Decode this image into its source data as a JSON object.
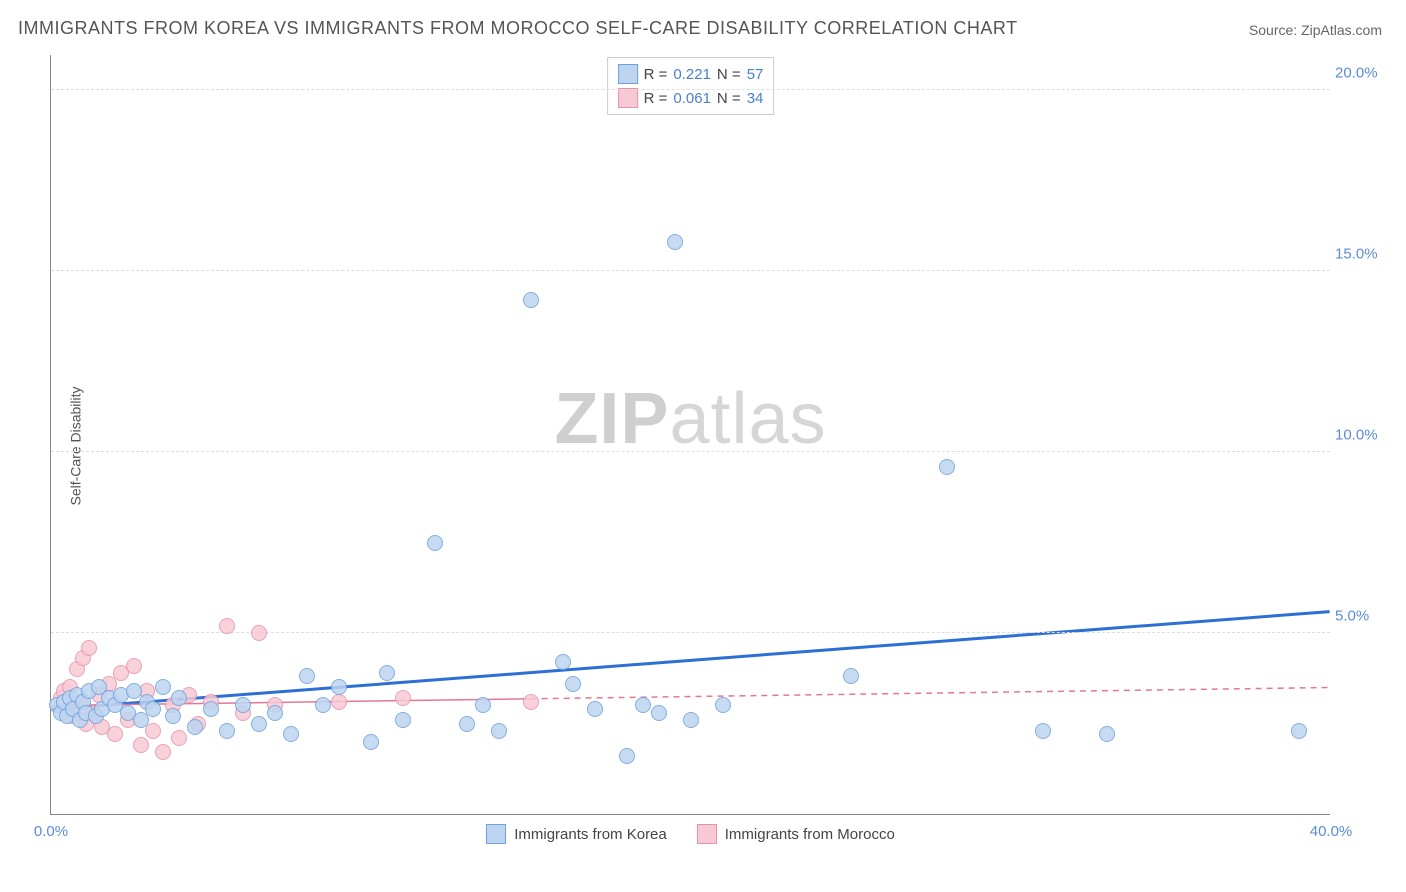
{
  "title": "IMMIGRANTS FROM KOREA VS IMMIGRANTS FROM MOROCCO SELF-CARE DISABILITY CORRELATION CHART",
  "source": "Source: ZipAtlas.com",
  "ylabel": "Self-Care Disability",
  "watermark_a": "ZIP",
  "watermark_b": "atlas",
  "chart": {
    "type": "scatter",
    "background_color": "#ffffff",
    "grid_color": "#dddddd",
    "axis_color": "#888888",
    "xlim": [
      0,
      40
    ],
    "ylim": [
      0,
      21
    ],
    "xticks": [
      {
        "v": 0,
        "label": "0.0%"
      },
      {
        "v": 40,
        "label": "40.0%"
      }
    ],
    "yticks": [
      {
        "v": 5,
        "label": "5.0%"
      },
      {
        "v": 10,
        "label": "10.0%"
      },
      {
        "v": 15,
        "label": "15.0%"
      },
      {
        "v": 20,
        "label": "20.0%"
      }
    ],
    "marker_radius": 8,
    "series": [
      {
        "id": "korea",
        "label": "Immigrants from Korea",
        "fill": "#bdd5f0",
        "stroke": "#6fa0de",
        "trend_color": "#2d6fd4",
        "trend_width": 3,
        "trend_dash": "none",
        "trend": {
          "x1": 0,
          "y1": 2.9,
          "x2": 40,
          "y2": 5.6
        },
        "R_label": "R = ",
        "R": "0.221",
        "N_label": "  N = ",
        "N": "57",
        "points": [
          [
            0.2,
            3.0
          ],
          [
            0.3,
            2.8
          ],
          [
            0.4,
            3.1
          ],
          [
            0.5,
            2.7
          ],
          [
            0.6,
            3.2
          ],
          [
            0.7,
            2.9
          ],
          [
            0.8,
            3.3
          ],
          [
            0.9,
            2.6
          ],
          [
            1.0,
            3.1
          ],
          [
            1.1,
            2.8
          ],
          [
            1.2,
            3.4
          ],
          [
            1.4,
            2.7
          ],
          [
            1.5,
            3.5
          ],
          [
            1.6,
            2.9
          ],
          [
            1.8,
            3.2
          ],
          [
            2.0,
            3.0
          ],
          [
            2.2,
            3.3
          ],
          [
            2.4,
            2.8
          ],
          [
            2.6,
            3.4
          ],
          [
            2.8,
            2.6
          ],
          [
            3.0,
            3.1
          ],
          [
            3.2,
            2.9
          ],
          [
            3.5,
            3.5
          ],
          [
            3.8,
            2.7
          ],
          [
            4.0,
            3.2
          ],
          [
            4.5,
            2.4
          ],
          [
            5.0,
            2.9
          ],
          [
            5.5,
            2.3
          ],
          [
            6.0,
            3.0
          ],
          [
            6.5,
            2.5
          ],
          [
            7.0,
            2.8
          ],
          [
            7.5,
            2.2
          ],
          [
            8.0,
            3.8
          ],
          [
            8.5,
            3.0
          ],
          [
            9.0,
            3.5
          ],
          [
            10.0,
            2.0
          ],
          [
            10.5,
            3.9
          ],
          [
            11.0,
            2.6
          ],
          [
            12.0,
            7.5
          ],
          [
            13.0,
            2.5
          ],
          [
            13.5,
            3.0
          ],
          [
            14.0,
            2.3
          ],
          [
            15.0,
            14.2
          ],
          [
            16.0,
            4.2
          ],
          [
            16.3,
            3.6
          ],
          [
            17.0,
            2.9
          ],
          [
            18.0,
            1.6
          ],
          [
            18.5,
            3.0
          ],
          [
            19.0,
            2.8
          ],
          [
            19.5,
            15.8
          ],
          [
            20.0,
            2.6
          ],
          [
            21.0,
            3.0
          ],
          [
            25.0,
            3.8
          ],
          [
            28.0,
            9.6
          ],
          [
            31.0,
            2.3
          ],
          [
            33.0,
            2.2
          ],
          [
            39.0,
            2.3
          ]
        ]
      },
      {
        "id": "morocco",
        "label": "Immigrants from Morocco",
        "fill": "#f7c9d4",
        "stroke": "#e891a8",
        "trend_color": "#e37893",
        "trend_width": 1.5,
        "trend_dash": "6,5",
        "trend_solid_until": 15,
        "trend": {
          "x1": 0,
          "y1": 3.0,
          "x2": 40,
          "y2": 3.5
        },
        "R_label": "R = ",
        "R": "0.061",
        "N_label": "  N = ",
        "N": "34",
        "points": [
          [
            0.3,
            3.2
          ],
          [
            0.4,
            3.4
          ],
          [
            0.5,
            2.9
          ],
          [
            0.6,
            3.5
          ],
          [
            0.7,
            2.7
          ],
          [
            0.8,
            4.0
          ],
          [
            0.9,
            3.1
          ],
          [
            1.0,
            4.3
          ],
          [
            1.1,
            2.5
          ],
          [
            1.2,
            4.6
          ],
          [
            1.3,
            2.8
          ],
          [
            1.5,
            3.3
          ],
          [
            1.6,
            2.4
          ],
          [
            1.8,
            3.6
          ],
          [
            2.0,
            2.2
          ],
          [
            2.2,
            3.9
          ],
          [
            2.4,
            2.6
          ],
          [
            2.6,
            4.1
          ],
          [
            2.8,
            1.9
          ],
          [
            3.0,
            3.4
          ],
          [
            3.2,
            2.3
          ],
          [
            3.5,
            1.7
          ],
          [
            3.8,
            3.0
          ],
          [
            4.0,
            2.1
          ],
          [
            4.3,
            3.3
          ],
          [
            4.6,
            2.5
          ],
          [
            5.0,
            3.1
          ],
          [
            5.5,
            5.2
          ],
          [
            6.0,
            2.8
          ],
          [
            6.5,
            5.0
          ],
          [
            7.0,
            3.0
          ],
          [
            9.0,
            3.1
          ],
          [
            11.0,
            3.2
          ],
          [
            15.0,
            3.1
          ]
        ]
      }
    ]
  }
}
